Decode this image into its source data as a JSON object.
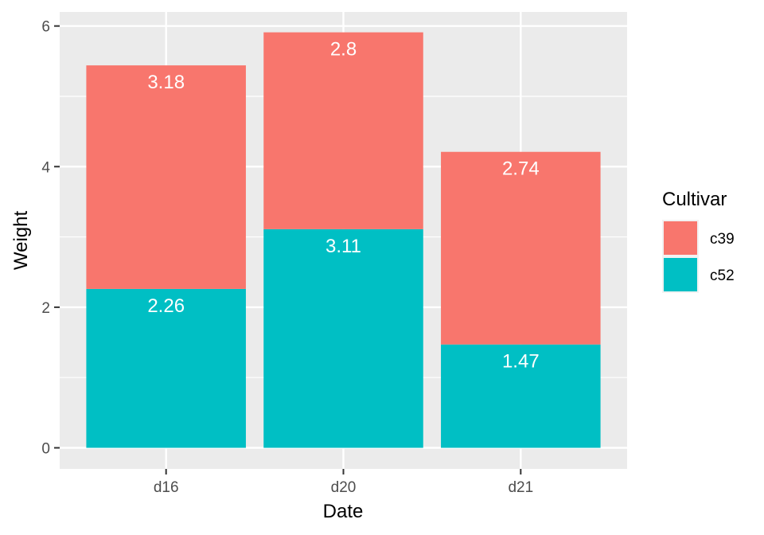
{
  "chart_data": {
    "type": "bar",
    "stacked": true,
    "categories": [
      "d16",
      "d20",
      "d21"
    ],
    "series": [
      {
        "name": "c52",
        "color": "#00BFC4",
        "values": [
          2.26,
          3.11,
          1.47
        ],
        "labels": [
          "2.26",
          "3.11",
          "1.47"
        ]
      },
      {
        "name": "c39",
        "color": "#F8766D",
        "values": [
          3.18,
          2.8,
          2.74
        ],
        "labels": [
          "3.18",
          "2.8",
          "2.74"
        ]
      }
    ],
    "xlabel": "Date",
    "ylabel": "Weight",
    "ylim": [
      -0.3,
      6.2
    ],
    "yticks": [
      0,
      2,
      4,
      6
    ],
    "ytick_labels": [
      "0",
      "2",
      "4",
      "6"
    ],
    "panel_background": "#EBEBEB",
    "grid": true,
    "legend": {
      "title": "Cultivar",
      "position": "right",
      "entries": [
        {
          "label": "c39",
          "color": "#F8766D"
        },
        {
          "label": "c52",
          "color": "#00BFC4"
        }
      ]
    }
  }
}
